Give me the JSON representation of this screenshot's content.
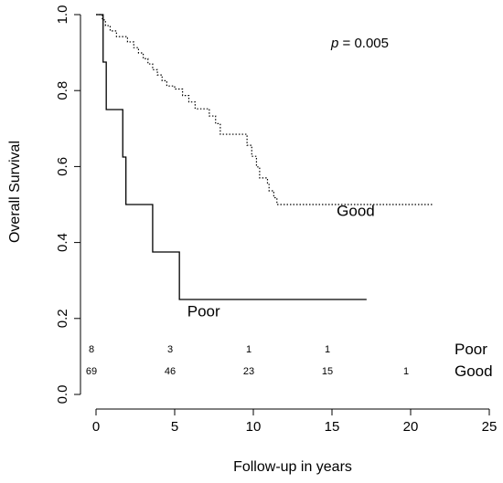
{
  "chart_data": {
    "type": "line",
    "title": "",
    "xlabel": "Follow-up in years",
    "ylabel": "Overall Survival",
    "xlim": [
      0,
      25
    ],
    "ylim": [
      0,
      1
    ],
    "x_ticks": [
      0,
      5,
      10,
      15,
      20,
      25
    ],
    "y_ticks": [
      0.0,
      0.2,
      0.4,
      0.6,
      0.8,
      1.0
    ],
    "x_tick_labels": [
      "0",
      "5",
      "10",
      "15",
      "20",
      "25"
    ],
    "y_tick_labels": [
      "0.0",
      "0.2",
      "0.4",
      "0.6",
      "0.8",
      "1.0"
    ],
    "annotation": {
      "italic": "p",
      "rest": " = 0.005"
    },
    "grid": false,
    "series": [
      {
        "name": "Good",
        "style": "dotted",
        "steps": [
          [
            0,
            1.0
          ],
          [
            0.4,
            0.986
          ],
          [
            0.6,
            0.971
          ],
          [
            0.9,
            0.957
          ],
          [
            1.3,
            0.942
          ],
          [
            2.0,
            0.928
          ],
          [
            2.4,
            0.913
          ],
          [
            2.7,
            0.899
          ],
          [
            3.0,
            0.884
          ],
          [
            3.3,
            0.87
          ],
          [
            3.6,
            0.855
          ],
          [
            3.9,
            0.841
          ],
          [
            4.2,
            0.826
          ],
          [
            4.5,
            0.812
          ],
          [
            5.0,
            0.804
          ],
          [
            5.5,
            0.787
          ],
          [
            5.9,
            0.77
          ],
          [
            6.3,
            0.752
          ],
          [
            7.2,
            0.733
          ],
          [
            7.6,
            0.713
          ],
          [
            7.9,
            0.685
          ],
          [
            9.6,
            0.656
          ],
          [
            9.9,
            0.627
          ],
          [
            10.2,
            0.599
          ],
          [
            10.4,
            0.57
          ],
          [
            10.9,
            0.553
          ],
          [
            11.0,
            0.536
          ],
          [
            11.3,
            0.518
          ],
          [
            11.5,
            0.5
          ],
          [
            21.4,
            0.5
          ]
        ],
        "label_position": {
          "x": 15.3,
          "y": 0.47
        }
      },
      {
        "name": "Poor",
        "style": "solid",
        "steps": [
          [
            0,
            1.0
          ],
          [
            0.45,
            0.875
          ],
          [
            0.65,
            0.75
          ],
          [
            1.7,
            0.625
          ],
          [
            1.9,
            0.5
          ],
          [
            3.6,
            0.375
          ],
          [
            5.3,
            0.25
          ],
          [
            17.2,
            0.25
          ]
        ],
        "label_position": {
          "x": 5.8,
          "y": 0.205
        }
      }
    ],
    "risk_table": {
      "times": [
        0,
        5,
        10,
        15,
        20
      ],
      "rows": [
        {
          "group": "Poor",
          "counts": [
            "8",
            "3",
            "1",
            "1",
            ""
          ]
        },
        {
          "group": "Good",
          "counts": [
            "69",
            "46",
            "23",
            "15",
            "1"
          ]
        }
      ]
    }
  }
}
